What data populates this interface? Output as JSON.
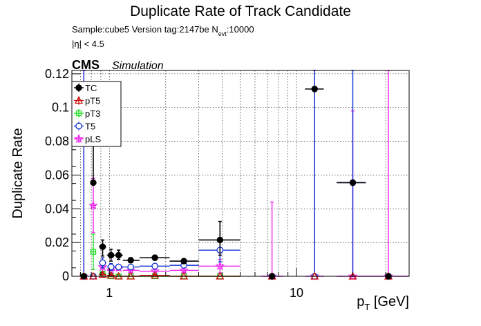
{
  "chart_data": {
    "type": "scatter",
    "title": "Duplicate Rate of Track Candidate",
    "sample_line": {
      "prefix": "Sample:cube5   Version tag:2147be  N",
      "subscript": "evt",
      "suffix": ":10000"
    },
    "eta_cut": "|η| < 4.5",
    "cms_label": "CMS",
    "simulation_label": "Simulation",
    "ylabel": "Duplicate Rate",
    "xlabel": {
      "main": "p",
      "subscript": "T",
      "unit": " [GeV]"
    },
    "x_scale": "log",
    "xlim": [
      0.63,
      40
    ],
    "ylim": [
      0,
      0.122
    ],
    "x_tick_labels": [
      {
        "value": 1,
        "label": "1"
      },
      {
        "value": 10,
        "label": "10"
      }
    ],
    "y_tick_labels": [
      {
        "value": 0,
        "label": "0"
      },
      {
        "value": 0.02,
        "label": "0.02"
      },
      {
        "value": 0.04,
        "label": "0.04"
      },
      {
        "value": 0.06,
        "label": "0.06"
      },
      {
        "value": 0.08,
        "label": "0.08"
      },
      {
        "value": 0.1,
        "label": "0.1"
      },
      {
        "value": 0.12,
        "label": "0.12"
      }
    ],
    "grid": true,
    "legend_position": "top-left",
    "series": [
      {
        "name": "TC",
        "color": "#000000",
        "marker": "filled-circle",
        "points": [
          {
            "x": 0.73,
            "xlo": 0.7,
            "xhi": 0.76,
            "y": 0,
            "ylo": 0,
            "yhi": 0
          },
          {
            "x": 0.82,
            "xlo": 0.79,
            "xhi": 0.85,
            "y": 0.0555,
            "ylo": 0.0555,
            "yhi": 0.084
          },
          {
            "x": 0.92,
            "xlo": 0.88,
            "xhi": 0.96,
            "y": 0.0175,
            "ylo": 0.012,
            "yhi": 0.0215
          },
          {
            "x": 1.02,
            "xlo": 0.97,
            "xhi": 1.07,
            "y": 0.0125,
            "ylo": 0.009,
            "yhi": 0.016
          },
          {
            "x": 1.12,
            "xlo": 1.07,
            "xhi": 1.18,
            "y": 0.0125,
            "ylo": 0.01,
            "yhi": 0.0155
          },
          {
            "x": 1.3,
            "xlo": 1.18,
            "xhi": 1.45,
            "y": 0.0095,
            "ylo": 0.008,
            "yhi": 0.011
          },
          {
            "x": 1.75,
            "xlo": 1.45,
            "xhi": 2.1,
            "y": 0.011,
            "ylo": 0.0095,
            "yhi": 0.0125
          },
          {
            "x": 2.5,
            "xlo": 2.1,
            "xhi": 3.0,
            "y": 0.009,
            "ylo": 0.0075,
            "yhi": 0.0105
          },
          {
            "x": 3.9,
            "xlo": 3.0,
            "xhi": 5.0,
            "y": 0.0215,
            "ylo": 0.0125,
            "yhi": 0.0325
          },
          {
            "x": 7.4,
            "xlo": 7.2,
            "xhi": 7.6,
            "y": 0,
            "ylo": 0,
            "yhi": 0
          },
          {
            "x": 12.5,
            "xlo": 11.1,
            "xhi": 14.0,
            "y": 0.111,
            "ylo": 0.111,
            "yhi": 0.111
          },
          {
            "x": 20,
            "xlo": 16.4,
            "xhi": 23.5,
            "y": 0.0555,
            "ylo": 0.0555,
            "yhi": 0.0555
          },
          {
            "x": 31,
            "xlo": 30,
            "xhi": 32,
            "y": 0,
            "ylo": 0,
            "yhi": 0
          }
        ]
      },
      {
        "name": "pT5",
        "color": "#d01010",
        "marker": "open-triangle",
        "points": [
          {
            "x": 0.73,
            "xlo": 0.7,
            "xhi": 0.76,
            "y": 0,
            "ylo": 0,
            "yhi": 0
          },
          {
            "x": 0.82,
            "xlo": 0.79,
            "xhi": 0.85,
            "y": 0,
            "ylo": 0,
            "yhi": 0
          },
          {
            "x": 0.92,
            "xlo": 0.88,
            "xhi": 0.96,
            "y": 0.001,
            "ylo": 0,
            "yhi": 0.002
          },
          {
            "x": 1.02,
            "xlo": 0.97,
            "xhi": 1.07,
            "y": 0.0005,
            "ylo": 0,
            "yhi": 0.001
          },
          {
            "x": 1.12,
            "xlo": 1.07,
            "xhi": 1.18,
            "y": 0,
            "ylo": 0,
            "yhi": 0
          },
          {
            "x": 1.3,
            "xlo": 1.18,
            "xhi": 1.45,
            "y": 0,
            "ylo": 0,
            "yhi": 0
          },
          {
            "x": 1.75,
            "xlo": 1.45,
            "xhi": 2.1,
            "y": 0.0005,
            "ylo": 0,
            "yhi": 0.001
          },
          {
            "x": 2.5,
            "xlo": 2.1,
            "xhi": 3.0,
            "y": 0,
            "ylo": 0,
            "yhi": 0
          },
          {
            "x": 3.9,
            "xlo": 3.0,
            "xhi": 5.0,
            "y": 0,
            "ylo": 0,
            "yhi": 0
          },
          {
            "x": 7.4,
            "xlo": 7.2,
            "xhi": 7.6,
            "y": 0,
            "ylo": 0,
            "yhi": 0
          },
          {
            "x": 12.5,
            "xlo": 12.2,
            "xhi": 12.8,
            "y": 0,
            "ylo": 0,
            "yhi": 0
          },
          {
            "x": 20,
            "xlo": 19.6,
            "xhi": 20.4,
            "y": 0,
            "ylo": 0,
            "yhi": 0
          },
          {
            "x": 31,
            "xlo": 30,
            "xhi": 32,
            "y": 0,
            "ylo": 0,
            "yhi": 0
          }
        ]
      },
      {
        "name": "pT3",
        "color": "#22dd22",
        "marker": "open-square",
        "points": [
          {
            "x": 0.73,
            "xlo": 0.7,
            "xhi": 0.76,
            "y": 0,
            "ylo": 0,
            "yhi": 0
          },
          {
            "x": 0.82,
            "xlo": 0.79,
            "xhi": 0.85,
            "y": 0.0145,
            "ylo": 0.004,
            "yhi": 0.025
          },
          {
            "x": 0.92,
            "xlo": 0.88,
            "xhi": 0.96,
            "y": 0.0015,
            "ylo": 0,
            "yhi": 0.003
          },
          {
            "x": 1.02,
            "xlo": 0.97,
            "xhi": 1.07,
            "y": 0,
            "ylo": 0,
            "yhi": 0.001
          },
          {
            "x": 1.12,
            "xlo": 1.07,
            "xhi": 1.18,
            "y": 0,
            "ylo": 0,
            "yhi": 0.001
          },
          {
            "x": 1.3,
            "xlo": 1.18,
            "xhi": 1.45,
            "y": 0,
            "ylo": 0,
            "yhi": 0
          },
          {
            "x": 1.75,
            "xlo": 1.45,
            "xhi": 2.1,
            "y": 0,
            "ylo": 0,
            "yhi": 0
          },
          {
            "x": 2.5,
            "xlo": 2.1,
            "xhi": 3.0,
            "y": 0,
            "ylo": 0,
            "yhi": 0
          },
          {
            "x": 3.9,
            "xlo": 3.0,
            "xhi": 5.0,
            "y": 0,
            "ylo": 0,
            "yhi": 0
          }
        ]
      },
      {
        "name": "T5",
        "color": "#1030d0",
        "marker": "open-circle",
        "points": [
          {
            "x": 0.73,
            "xlo": 0.7,
            "xhi": 0.76,
            "y": 0,
            "ylo": 0,
            "yhi": 0.122
          },
          {
            "x": 0.82,
            "xlo": 0.79,
            "xhi": 0.85,
            "y": 0,
            "ylo": 0,
            "yhi": 0
          },
          {
            "x": 0.92,
            "xlo": 0.88,
            "xhi": 0.96,
            "y": 0.008,
            "ylo": 0.005,
            "yhi": 0.011
          },
          {
            "x": 1.02,
            "xlo": 0.97,
            "xhi": 1.07,
            "y": 0.0055,
            "ylo": 0.0035,
            "yhi": 0.0075
          },
          {
            "x": 1.12,
            "xlo": 1.07,
            "xhi": 1.18,
            "y": 0.0055,
            "ylo": 0.004,
            "yhi": 0.007
          },
          {
            "x": 1.3,
            "xlo": 1.18,
            "xhi": 1.45,
            "y": 0.0055,
            "ylo": 0.0045,
            "yhi": 0.0065
          },
          {
            "x": 1.75,
            "xlo": 1.45,
            "xhi": 2.1,
            "y": 0.006,
            "ylo": 0.005,
            "yhi": 0.007
          },
          {
            "x": 2.5,
            "xlo": 2.1,
            "xhi": 3.0,
            "y": 0.0065,
            "ylo": 0.0055,
            "yhi": 0.0075
          },
          {
            "x": 3.9,
            "xlo": 3.0,
            "xhi": 5.0,
            "y": 0.0155,
            "ylo": 0.0085,
            "yhi": 0.0225
          },
          {
            "x": 7.4,
            "xlo": 7.2,
            "xhi": 7.6,
            "y": 0,
            "ylo": 0,
            "yhi": 0
          },
          {
            "x": 12.5,
            "xlo": 12.2,
            "xhi": 12.8,
            "y": 0,
            "ylo": 0,
            "yhi": 0.122
          },
          {
            "x": 20,
            "xlo": 16.4,
            "xhi": 23.5,
            "y": 0.0555,
            "ylo": 0,
            "yhi": 0.122
          },
          {
            "x": 31,
            "xlo": 30,
            "xhi": 32,
            "y": 0,
            "ylo": 0,
            "yhi": 0
          }
        ]
      },
      {
        "name": "pLS",
        "color": "#ee22ee",
        "marker": "open-star",
        "points": [
          {
            "x": 0.73,
            "xlo": 0.7,
            "xhi": 0.76,
            "y": 0,
            "ylo": 0,
            "yhi": 0.122
          },
          {
            "x": 0.82,
            "xlo": 0.79,
            "xhi": 0.85,
            "y": 0.042,
            "ylo": 0.026,
            "yhi": 0.058
          },
          {
            "x": 0.92,
            "xlo": 0.88,
            "xhi": 0.96,
            "y": 0.0055,
            "ylo": 0.0025,
            "yhi": 0.0085
          },
          {
            "x": 1.02,
            "xlo": 0.97,
            "xhi": 1.07,
            "y": 0.0035,
            "ylo": 0.0015,
            "yhi": 0.0055
          },
          {
            "x": 1.12,
            "xlo": 1.07,
            "xhi": 1.18,
            "y": 0.005,
            "ylo": 0.0035,
            "yhi": 0.0065
          },
          {
            "x": 1.3,
            "xlo": 1.18,
            "xhi": 1.45,
            "y": 0.0035,
            "ylo": 0.0025,
            "yhi": 0.0045
          },
          {
            "x": 1.75,
            "xlo": 1.45,
            "xhi": 2.1,
            "y": 0.003,
            "ylo": 0.002,
            "yhi": 0.004
          },
          {
            "x": 2.5,
            "xlo": 2.1,
            "xhi": 3.0,
            "y": 0.0035,
            "ylo": 0.0025,
            "yhi": 0.0045
          },
          {
            "x": 3.9,
            "xlo": 3.0,
            "xhi": 5.0,
            "y": 0.006,
            "ylo": 0.002,
            "yhi": 0.01
          },
          {
            "x": 7.4,
            "xlo": 6.5,
            "xhi": 8.5,
            "y": 0,
            "ylo": 0,
            "yhi": 0.044
          },
          {
            "x": 12.5,
            "xlo": 11.1,
            "xhi": 14.0,
            "y": 0,
            "ylo": 0,
            "yhi": 0.122
          },
          {
            "x": 20,
            "xlo": 16.4,
            "xhi": 23.5,
            "y": 0,
            "ylo": 0,
            "yhi": 0.098
          },
          {
            "x": 31,
            "xlo": 23.5,
            "xhi": 40,
            "y": 0,
            "ylo": 0,
            "yhi": 0.122
          }
        ]
      }
    ]
  }
}
